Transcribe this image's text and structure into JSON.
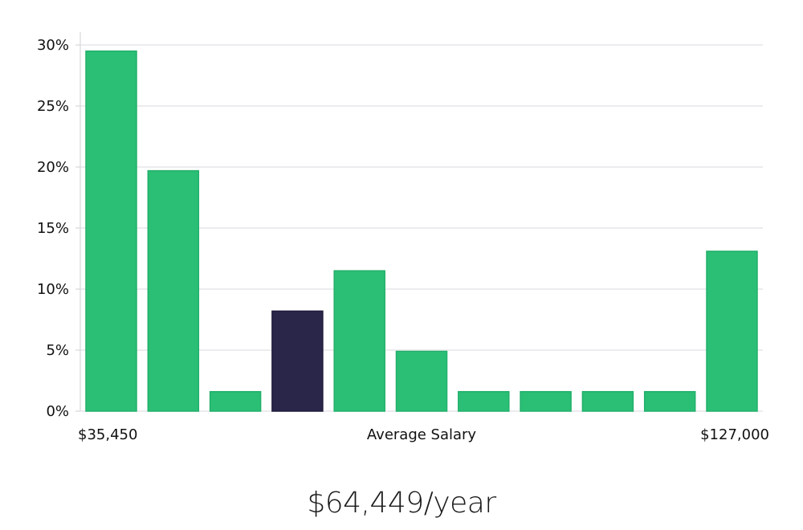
{
  "chart_data": {
    "type": "bar",
    "values": [
      29.5,
      19.7,
      1.6,
      8.2,
      11.5,
      4.9,
      1.6,
      1.6,
      1.6,
      1.6,
      13.1
    ],
    "highlight_index": 3,
    "ylim": [
      0,
      30
    ],
    "yticks": [
      0,
      5,
      10,
      15,
      20,
      25,
      30
    ],
    "ytick_labels": [
      "0%",
      "5%",
      "10%",
      "15%",
      "20%",
      "25%",
      "30%"
    ],
    "xlabel": "Average Salary",
    "x_min_label": "$35,450",
    "x_max_label": "$127,000",
    "grid": true,
    "colors": {
      "bar": "#2bbf76",
      "bar_edge": "#22b06a",
      "highlight": "#29264a",
      "grid": "#e6e6ea",
      "axis": "#cfcfd6"
    }
  },
  "summary": {
    "salary": "$64,449/year"
  }
}
